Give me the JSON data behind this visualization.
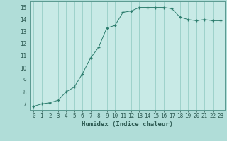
{
  "x": [
    0,
    1,
    2,
    3,
    4,
    5,
    6,
    7,
    8,
    9,
    10,
    11,
    12,
    13,
    14,
    15,
    16,
    17,
    18,
    19,
    20,
    21,
    22,
    23
  ],
  "y": [
    6.8,
    7.0,
    7.1,
    7.3,
    8.0,
    8.4,
    9.5,
    10.8,
    11.7,
    13.3,
    13.5,
    14.6,
    14.7,
    15.0,
    15.0,
    15.0,
    15.0,
    14.9,
    14.2,
    14.0,
    13.9,
    14.0,
    13.9,
    13.9
  ],
  "line_color": "#2d7d6e",
  "marker": "+",
  "marker_size": 3,
  "bg_color": "#b0ddd8",
  "plot_bg_color": "#c8eae6",
  "grid_color": "#8ec8c0",
  "xlabel": "Humidex (Indice chaleur)",
  "xlim": [
    -0.5,
    23.5
  ],
  "ylim": [
    6.5,
    15.5
  ],
  "yticks": [
    7,
    8,
    9,
    10,
    11,
    12,
    13,
    14,
    15
  ],
  "xticks": [
    0,
    1,
    2,
    3,
    4,
    5,
    6,
    7,
    8,
    9,
    10,
    11,
    12,
    13,
    14,
    15,
    16,
    17,
    18,
    19,
    20,
    21,
    22,
    23
  ],
  "label_fontsize": 6.5,
  "tick_fontsize": 5.5
}
